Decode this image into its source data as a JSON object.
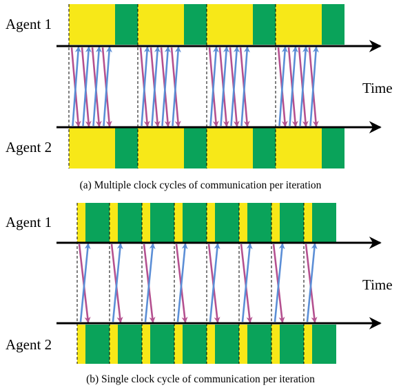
{
  "panel_a": {
    "agent_top_label": "Agent 1",
    "agent_bottom_label": "Agent 2",
    "time_label": "Time",
    "caption": "(a) Multiple clock cycles of communication per iteration",
    "iterations": 4,
    "messages_per_iteration": 4
  },
  "panel_b": {
    "agent_top_label": "Agent 1",
    "agent_bottom_label": "Agent 2",
    "time_label": "Time",
    "caption": "(b) Single clock cycle of communication per iteration",
    "iterations": 8,
    "messages_per_iteration": 1
  },
  "colors": {
    "compute": "#f7e818",
    "wait": "#0aa35a",
    "arrow_up": "#5b8ed6",
    "arrow_down": "#b4508f",
    "timeline": "#000000"
  }
}
